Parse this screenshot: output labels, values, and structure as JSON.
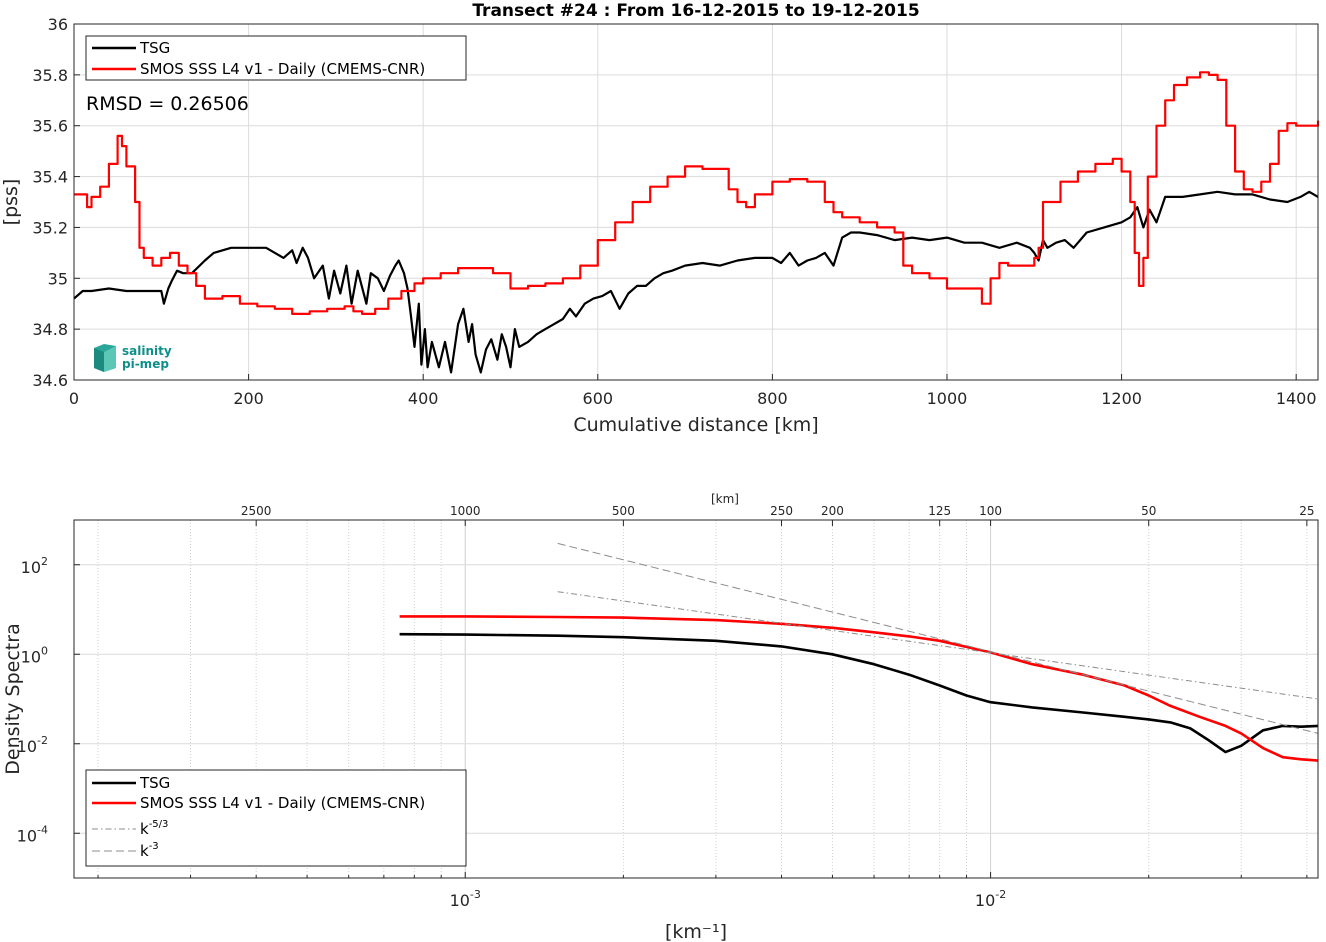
{
  "chart_data": [
    {
      "type": "line",
      "title": "Transect #24 : From 16-12-2015 to 19-12-2015",
      "xlabel": "Cumulative distance [km]",
      "ylabel": "[pss]",
      "xlim": [
        0,
        1425
      ],
      "ylim": [
        34.6,
        36
      ],
      "xticks": [
        0,
        200,
        400,
        600,
        800,
        1000,
        1200,
        1400
      ],
      "yticks": [
        34.6,
        34.8,
        35,
        35.2,
        35.4,
        35.6,
        35.8,
        36
      ],
      "ytick_labels": [
        "34.6",
        "34.8",
        "35",
        "35.2",
        "35.4",
        "35.6",
        "35.8",
        "36"
      ],
      "grid": true,
      "legend_position": "top-left",
      "annotation": "RMSD = 0.26506",
      "logo": {
        "line1": "salinity",
        "line2": "pi-mep"
      },
      "series": [
        {
          "name": "TSG",
          "color": "#000000",
          "x": [
            0,
            10,
            20,
            40,
            60,
            80,
            100,
            103,
            108,
            112,
            118,
            125,
            135,
            150,
            160,
            180,
            200,
            220,
            240,
            250,
            255,
            262,
            268,
            275,
            285,
            292,
            298,
            305,
            312,
            318,
            325,
            335,
            340,
            348,
            355,
            362,
            368,
            372,
            378,
            382,
            386,
            390,
            395,
            398,
            402,
            405,
            410,
            418,
            425,
            432,
            440,
            446,
            452,
            456,
            460,
            466,
            472,
            478,
            485,
            490,
            495,
            500,
            505,
            510,
            520,
            530,
            540,
            550,
            560,
            568,
            575,
            585,
            595,
            605,
            615,
            625,
            635,
            645,
            655,
            665,
            675,
            685,
            700,
            720,
            740,
            760,
            780,
            800,
            810,
            820,
            830,
            840,
            850,
            860,
            870,
            880,
            890,
            900,
            920,
            940,
            960,
            980,
            1000,
            1020,
            1040,
            1060,
            1080,
            1095,
            1100,
            1105,
            1110,
            1115,
            1125,
            1135,
            1145,
            1160,
            1180,
            1200,
            1210,
            1218,
            1225,
            1232,
            1240,
            1250,
            1270,
            1290,
            1310,
            1330,
            1350,
            1370,
            1390,
            1405,
            1415,
            1425
          ],
          "y": [
            34.92,
            34.95,
            34.95,
            34.96,
            34.95,
            34.95,
            34.95,
            34.9,
            34.96,
            34.99,
            35.03,
            35.02,
            35.02,
            35.07,
            35.1,
            35.12,
            35.12,
            35.12,
            35.08,
            35.11,
            35.06,
            35.12,
            35.08,
            35.0,
            35.05,
            34.92,
            35.03,
            34.94,
            35.05,
            34.9,
            35.03,
            34.9,
            35.02,
            35.0,
            34.95,
            35.01,
            35.05,
            35.07,
            35.02,
            34.96,
            34.85,
            34.73,
            34.9,
            34.66,
            34.8,
            34.65,
            34.75,
            34.65,
            34.75,
            34.63,
            34.82,
            34.88,
            34.75,
            34.82,
            34.7,
            34.63,
            34.72,
            34.76,
            34.68,
            34.78,
            34.73,
            34.65,
            34.8,
            34.73,
            34.75,
            34.78,
            34.8,
            34.82,
            34.84,
            34.88,
            34.85,
            34.9,
            34.92,
            34.93,
            34.95,
            34.88,
            34.94,
            34.97,
            34.97,
            35.0,
            35.02,
            35.03,
            35.05,
            35.06,
            35.05,
            35.07,
            35.08,
            35.08,
            35.06,
            35.1,
            35.05,
            35.07,
            35.08,
            35.1,
            35.05,
            35.16,
            35.18,
            35.18,
            35.17,
            35.15,
            35.16,
            35.15,
            35.16,
            35.14,
            35.14,
            35.12,
            35.14,
            35.12,
            35.1,
            35.07,
            35.15,
            35.12,
            35.14,
            35.15,
            35.12,
            35.18,
            35.2,
            35.22,
            35.24,
            35.28,
            35.2,
            35.27,
            35.22,
            35.32,
            35.32,
            35.33,
            35.34,
            35.33,
            35.33,
            35.31,
            35.3,
            35.32,
            35.34,
            35.32
          ]
        },
        {
          "name": "SMOS SSS L4 v1 - Daily (CMEMS-CNR)",
          "color": "#ff0000",
          "x": [
            0,
            15,
            20,
            30,
            40,
            50,
            55,
            60,
            70,
            75,
            80,
            90,
            100,
            110,
            120,
            130,
            140,
            150,
            170,
            190,
            210,
            230,
            250,
            270,
            290,
            310,
            320,
            330,
            345,
            360,
            375,
            390,
            400,
            420,
            440,
            460,
            480,
            500,
            520,
            540,
            560,
            580,
            600,
            620,
            640,
            660,
            680,
            700,
            720,
            740,
            750,
            760,
            770,
            780,
            800,
            820,
            840,
            860,
            870,
            880,
            900,
            920,
            940,
            950,
            960,
            980,
            1000,
            1040,
            1050,
            1060,
            1070,
            1080,
            1100,
            1105,
            1110,
            1130,
            1150,
            1170,
            1190,
            1200,
            1210,
            1215,
            1220,
            1225,
            1230,
            1240,
            1250,
            1260,
            1275,
            1290,
            1300,
            1310,
            1320,
            1330,
            1340,
            1350,
            1360,
            1370,
            1380,
            1390,
            1400,
            1410,
            1425
          ],
          "y": [
            35.33,
            35.28,
            35.32,
            35.36,
            35.45,
            35.56,
            35.52,
            35.44,
            35.3,
            35.12,
            35.08,
            35.05,
            35.08,
            35.1,
            35.05,
            35.02,
            34.97,
            34.92,
            34.93,
            34.9,
            34.89,
            34.88,
            34.86,
            34.87,
            34.88,
            34.89,
            34.87,
            34.86,
            34.88,
            34.92,
            34.95,
            34.98,
            35.0,
            35.02,
            35.04,
            35.04,
            35.02,
            34.96,
            34.97,
            34.98,
            35.0,
            35.05,
            35.15,
            35.22,
            35.3,
            35.36,
            35.4,
            35.44,
            35.43,
            35.43,
            35.35,
            35.3,
            35.28,
            35.33,
            35.38,
            35.39,
            35.38,
            35.3,
            35.26,
            35.24,
            35.22,
            35.2,
            35.18,
            35.05,
            35.02,
            35.0,
            34.96,
            34.9,
            35.0,
            35.06,
            35.05,
            35.05,
            35.08,
            35.12,
            35.3,
            35.38,
            35.42,
            35.45,
            35.47,
            35.42,
            35.3,
            35.1,
            34.97,
            35.08,
            35.4,
            35.6,
            35.7,
            35.76,
            35.79,
            35.81,
            35.8,
            35.78,
            35.6,
            35.42,
            35.35,
            35.34,
            35.38,
            35.45,
            35.58,
            35.61,
            35.6,
            35.6,
            35.62
          ]
        }
      ]
    },
    {
      "type": "line",
      "title": "",
      "xlabel": "[km⁻¹]",
      "ylabel": "Density Spectra",
      "xscale": "log",
      "yscale": "log",
      "xlim": [
        0.00018,
        0.042
      ],
      "ylim": [
        1e-05,
        1000
      ],
      "xticks": [
        0.001,
        0.01
      ],
      "xtick_labels_base": [
        "10",
        "10"
      ],
      "xtick_labels_exp": [
        "-3",
        "-2"
      ],
      "yticks": [
        0.0001,
        0.01,
        1,
        100
      ],
      "ytick_labels_base": [
        "10",
        "10",
        "10",
        "10"
      ],
      "ytick_labels_exp": [
        "-4",
        "-2",
        "0",
        "2"
      ],
      "top_axis_label": "[km]",
      "top_ticks": [
        2500,
        1000,
        500,
        250,
        200,
        125,
        100,
        50,
        25
      ],
      "top_tick_labels": [
        "2500",
        "1000",
        "500",
        "250",
        "200",
        "125",
        "100",
        "50",
        "25"
      ],
      "grid": true,
      "legend_position": "bottom-left",
      "series": [
        {
          "name": "TSG",
          "color": "#000000",
          "style": "solid",
          "x": [
            0.00075,
            0.001,
            0.0015,
            0.002,
            0.003,
            0.004,
            0.005,
            0.006,
            0.007,
            0.008,
            0.009,
            0.01,
            0.012,
            0.015,
            0.018,
            0.02,
            0.022,
            0.024,
            0.026,
            0.028,
            0.03,
            0.033,
            0.036,
            0.039,
            0.042
          ],
          "y": [
            2.8,
            2.75,
            2.6,
            2.4,
            2.0,
            1.5,
            1.0,
            0.6,
            0.35,
            0.2,
            0.12,
            0.085,
            0.065,
            0.05,
            0.04,
            0.035,
            0.03,
            0.022,
            0.012,
            0.0065,
            0.009,
            0.02,
            0.025,
            0.024,
            0.025
          ]
        },
        {
          "name": "SMOS SSS L4 v1 - Daily (CMEMS-CNR)",
          "color": "#ff0000",
          "style": "solid",
          "x": [
            0.00075,
            0.001,
            0.0015,
            0.002,
            0.003,
            0.004,
            0.005,
            0.006,
            0.007,
            0.008,
            0.01,
            0.012,
            0.015,
            0.018,
            0.02,
            0.022,
            0.025,
            0.028,
            0.03,
            0.033,
            0.036,
            0.039,
            0.042
          ],
          "y": [
            7.0,
            7.0,
            6.8,
            6.6,
            5.8,
            4.8,
            3.9,
            3.1,
            2.5,
            2.0,
            1.1,
            0.6,
            0.35,
            0.2,
            0.12,
            0.07,
            0.04,
            0.025,
            0.017,
            0.008,
            0.005,
            0.0045,
            0.0042
          ]
        },
        {
          "name": "k⁻⁵ᐟ³",
          "color": "#8c8c8c",
          "style": "dashdot",
          "x": [
            0.0015,
            0.042
          ],
          "y": [
            25,
            0.1
          ]
        },
        {
          "name": "k⁻³",
          "color": "#8c8c8c",
          "style": "dashed",
          "x": [
            0.0015,
            0.042
          ],
          "y": [
            300,
            0.017
          ]
        }
      ],
      "legend_labels": [
        {
          "base": "TSG",
          "exp": ""
        },
        {
          "base": "SMOS SSS L4 v1 - Daily (CMEMS-CNR)",
          "exp": ""
        },
        {
          "base": "k",
          "exp": "-5/3"
        },
        {
          "base": "k",
          "exp": "-3"
        }
      ]
    }
  ]
}
